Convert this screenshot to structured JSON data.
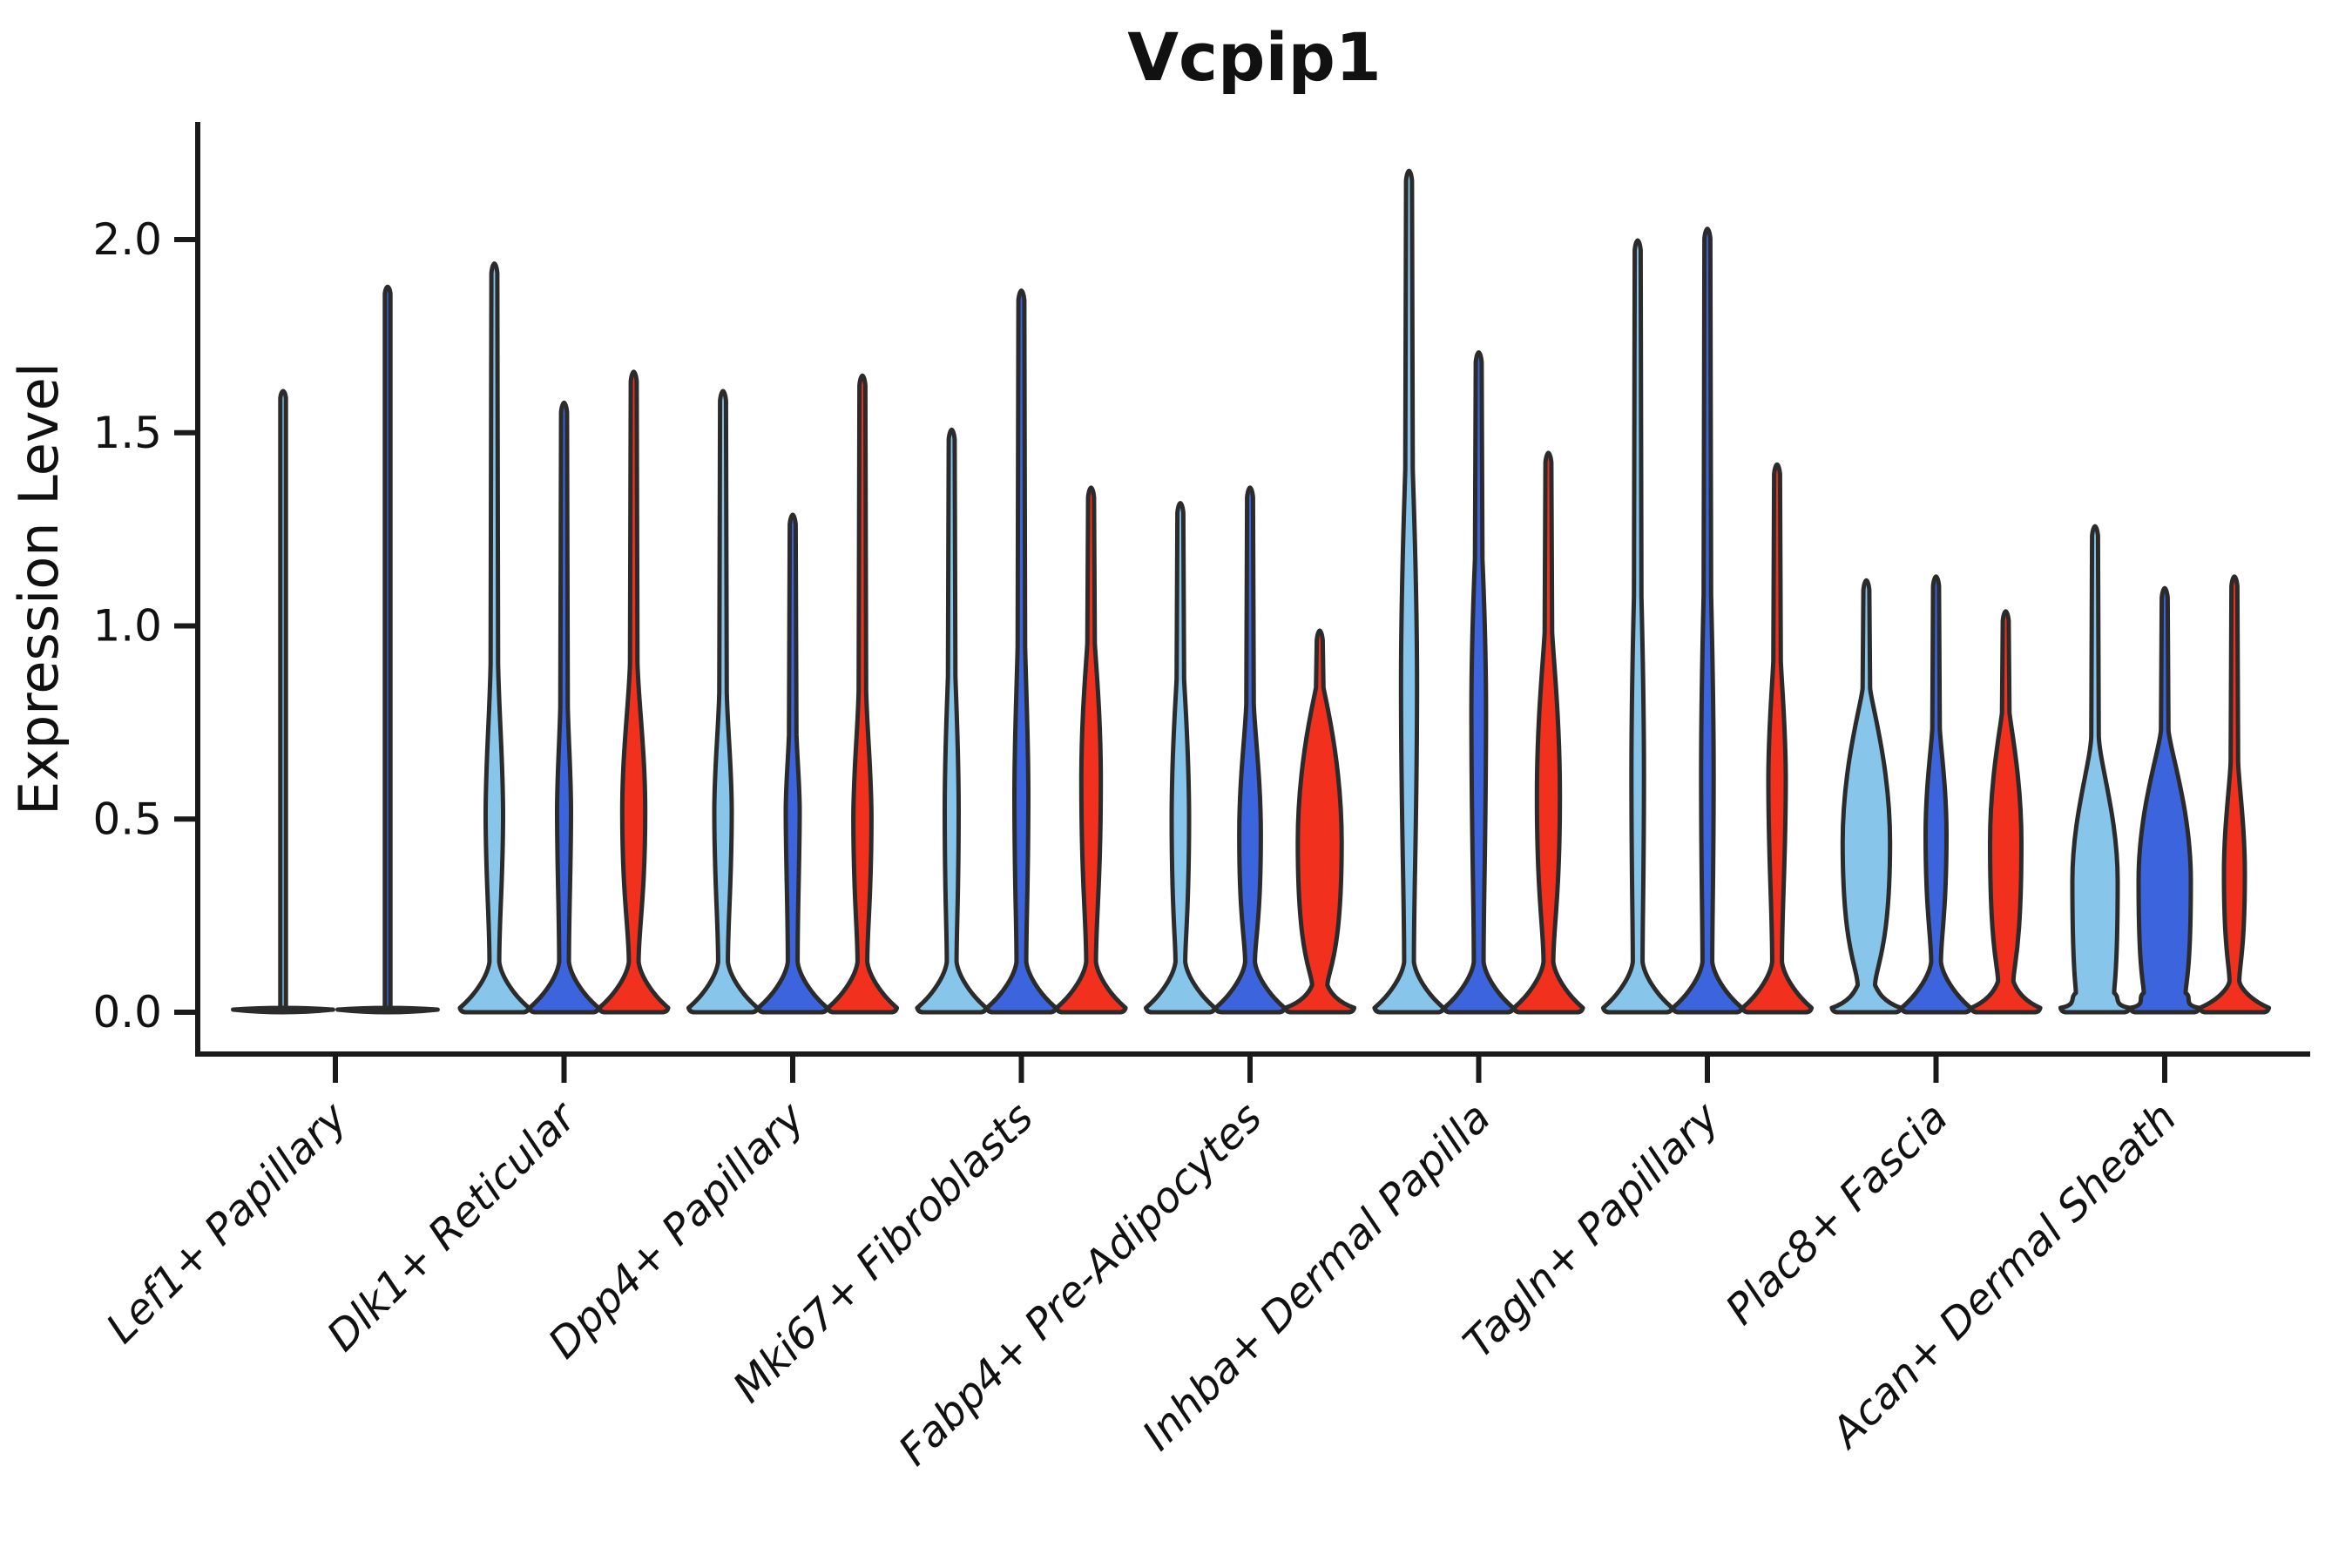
{
  "title": "Vcpip1",
  "axes": {
    "y_label": "Expression Level",
    "y_ticks": [
      {
        "label": "0.0",
        "value": 0.0
      },
      {
        "label": "0.5",
        "value": 0.5
      },
      {
        "label": "1.0",
        "value": 1.0
      },
      {
        "label": "1.5",
        "value": 1.5
      },
      {
        "label": "2.0",
        "value": 2.0
      }
    ]
  },
  "colors": {
    "light_blue": "#87C6EA",
    "royal_blue": "#3C64DC",
    "red": "#F2301E",
    "outline": "#2b2b2b",
    "axis": "#1a1a1a"
  },
  "chart_data": {
    "type": "violin",
    "title": "Vcpip1",
    "ylabel": "Expression Level",
    "ylim": [
      0,
      2.3
    ],
    "grid": false,
    "legend": "none",
    "splits": [
      {
        "name": "split-light-blue",
        "color_key": "light_blue"
      },
      {
        "name": "split-royal-blue",
        "color_key": "royal_blue"
      },
      {
        "name": "split-red",
        "color_key": "red"
      }
    ],
    "categories": [
      "Lef1+ Papillary",
      "Dlk1+ Reticular",
      "Dpp4+ Papillary",
      "Mki67+ Fibroblasts",
      "Fabp4+ Pre-Adipocytes",
      "Inhba+ Dermal Papilla",
      "Tagln+ Papillary",
      "Plac8+ Fascia",
      "Acan+ Dermal Sheath"
    ],
    "violins": [
      {
        "category": "Lef1+ Papillary",
        "items": [
          {
            "split": 0,
            "max": 1.61,
            "flat": true
          },
          {
            "split": 1,
            "max": 1.88,
            "flat": true
          }
        ]
      },
      {
        "category": "Dlk1+ Reticular",
        "items": [
          {
            "split": 0,
            "max": 1.94,
            "bulge": [
              0.35,
              0.51,
              0.76
            ],
            "bulge_width": 0.25
          },
          {
            "split": 1,
            "max": 1.58,
            "bulge": [
              0.38,
              0.52,
              0.68
            ],
            "bulge_width": 0.2
          },
          {
            "split": 2,
            "max": 1.66,
            "bulge": [
              0.3,
              0.52,
              0.8
            ],
            "bulge_width": 0.33
          }
        ]
      },
      {
        "category": "Dpp4+ Papillary",
        "items": [
          {
            "split": 0,
            "max": 1.61,
            "bulge": [
              0.34,
              0.52,
              0.72
            ],
            "bulge_width": 0.25
          },
          {
            "split": 1,
            "max": 1.29,
            "bulge": [
              0.4,
              0.52,
              0.64
            ],
            "bulge_width": 0.2
          },
          {
            "split": 2,
            "max": 1.65,
            "bulge": [
              0.3,
              0.5,
              0.72
            ],
            "bulge_width": 0.26
          }
        ]
      },
      {
        "category": "Mki67+ Fibroblasts",
        "items": [
          {
            "split": 0,
            "max": 1.51,
            "bulge": [
              0.3,
              0.52,
              0.78
            ],
            "bulge_width": 0.2
          },
          {
            "split": 1,
            "max": 1.87,
            "bulge": [
              0.34,
              0.56,
              0.82
            ],
            "bulge_width": 0.2
          },
          {
            "split": 2,
            "max": 1.36,
            "bulge": [
              0.34,
              0.6,
              0.9
            ],
            "bulge_width": 0.28
          }
        ]
      },
      {
        "category": "Fabp4+ Pre-Adipocytes",
        "items": [
          {
            "split": 0,
            "max": 1.32,
            "bulge": [
              0.26,
              0.5,
              0.8
            ],
            "bulge_width": 0.25
          },
          {
            "split": 1,
            "max": 1.36,
            "bulge": [
              0.24,
              0.46,
              0.72
            ],
            "bulge_width": 0.31
          },
          {
            "split": 2,
            "max": 0.99,
            "bulge": [
              0.14,
              0.44,
              0.82
            ],
            "bulge_width": 0.63,
            "pinch": 0.07,
            "pinch_width": 0.22
          }
        ]
      },
      {
        "category": "Inhba+ Dermal Papilla",
        "items": [
          {
            "split": 0,
            "max": 2.18,
            "bulge": [
              0.5,
              0.85,
              1.3
            ],
            "bulge_width": 0.23
          },
          {
            "split": 1,
            "max": 1.71,
            "bulge": [
              0.46,
              0.78,
              1.1
            ],
            "bulge_width": 0.21
          },
          {
            "split": 2,
            "max": 1.45,
            "bulge": [
              0.3,
              0.56,
              0.92
            ],
            "bulge_width": 0.33
          }
        ]
      },
      {
        "category": "Tagln+ Papillary",
        "items": [
          {
            "split": 0,
            "max": 2.0,
            "bulge": [
              0.36,
              0.62,
              0.95
            ],
            "bulge_width": 0.18
          },
          {
            "split": 1,
            "max": 2.03,
            "bulge": [
              0.36,
              0.62,
              0.95
            ],
            "bulge_width": 0.18
          },
          {
            "split": 2,
            "max": 1.42,
            "bulge": [
              0.4,
              0.6,
              0.84
            ],
            "bulge_width": 0.25
          }
        ]
      },
      {
        "category": "Plac8+ Fascia",
        "items": [
          {
            "split": 0,
            "max": 1.12,
            "bulge": [
              0.16,
              0.44,
              0.8
            ],
            "bulge_width": 0.68,
            "pinch": 0.07,
            "pinch_width": 0.25
          },
          {
            "split": 1,
            "max": 1.13,
            "bulge": [
              0.26,
              0.46,
              0.68
            ],
            "bulge_width": 0.3
          },
          {
            "split": 2,
            "max": 1.04,
            "bulge": [
              0.16,
              0.44,
              0.74
            ],
            "bulge_width": 0.45,
            "pinch": 0.08,
            "pinch_width": 0.22
          }
        ]
      },
      {
        "category": "Acan+ Dermal Sheath",
        "items": [
          {
            "split": 0,
            "max": 1.26,
            "bulge": [
              0.1,
              0.34,
              0.64
            ],
            "bulge_width": 0.65,
            "pinch": 0.05,
            "pinch_width": 0.55
          },
          {
            "split": 1,
            "max": 1.1,
            "bulge": [
              0.1,
              0.34,
              0.68
            ],
            "bulge_width": 0.75,
            "pinch": 0.05,
            "pinch_width": 0.6
          },
          {
            "split": 2,
            "max": 1.13,
            "bulge": [
              0.16,
              0.36,
              0.58
            ],
            "bulge_width": 0.3,
            "pinch": 0.08,
            "pinch_width": 0.14
          }
        ]
      }
    ]
  }
}
